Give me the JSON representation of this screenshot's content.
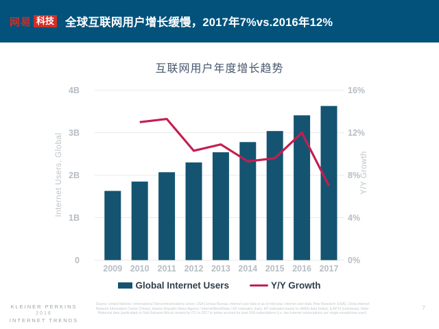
{
  "header": {
    "logo_netease": "网易",
    "logo_tech": "科技",
    "title": "全球互联网用户增长缓慢，2017年7%vs.2016年12%"
  },
  "chart": {
    "title": "互联网用户年度增长趋势"
  },
  "chart_data": {
    "type": "bar+line",
    "title": "互联网用户年度增长趋势",
    "categories": [
      "2009",
      "2010",
      "2011",
      "2012",
      "2013",
      "2014",
      "2015",
      "2016",
      "2017"
    ],
    "series": [
      {
        "name": "Global Internet Users",
        "type": "bar",
        "axis": "left",
        "unit": "billions",
        "values": [
          1.63,
          1.85,
          2.07,
          2.3,
          2.54,
          2.78,
          3.04,
          3.41,
          3.63
        ]
      },
      {
        "name": "Y/Y Growth",
        "type": "line",
        "axis": "right",
        "unit": "%",
        "values": [
          null,
          13.0,
          13.3,
          10.3,
          10.9,
          9.3,
          9.6,
          12.0,
          7.0
        ]
      }
    ],
    "left_axis": {
      "label": "Internet Users, Global",
      "min": 0,
      "max": 4,
      "ticks": [
        "0",
        "1B",
        "2B",
        "3B",
        "4B"
      ]
    },
    "right_axis": {
      "label": "Y/Y Growth",
      "min": 0,
      "max": 16,
      "ticks": [
        "0%",
        "4%",
        "8%",
        "12%",
        "16%"
      ]
    },
    "grid": true,
    "legend_position": "bottom"
  },
  "colors": {
    "header_background": "#02527c",
    "logo_red": "#d22f28",
    "bar": "#145470",
    "line": "#c41e52",
    "axis_text": "#b6bdc3",
    "gridline": "#e7e9ea"
  },
  "footer": {
    "brand_line1": "KLEINER PERKINS",
    "brand_line2": "2018",
    "brand_line3": "INTERNET TRENDS",
    "source_text": "Source: United Nations / International Telecommunications Union, USA Census Bureau. Internet user data is as of mid-year. Internet user data: Pew Research (USA), China Internet Network Information Center (China), Islamic Republic News Agency / InternetWorldStats / KP estimates (Iran). KP estimates based on IAMAI data (India), & APJII (Indonesia). Note: Historical data (particularly in Sub-Saharan Africa) revised by ITU in 2017 to better account for dual-SIM subscriptions (i.e. two Internet subscriptions per single smartphone user).",
    "page_number": "7"
  }
}
